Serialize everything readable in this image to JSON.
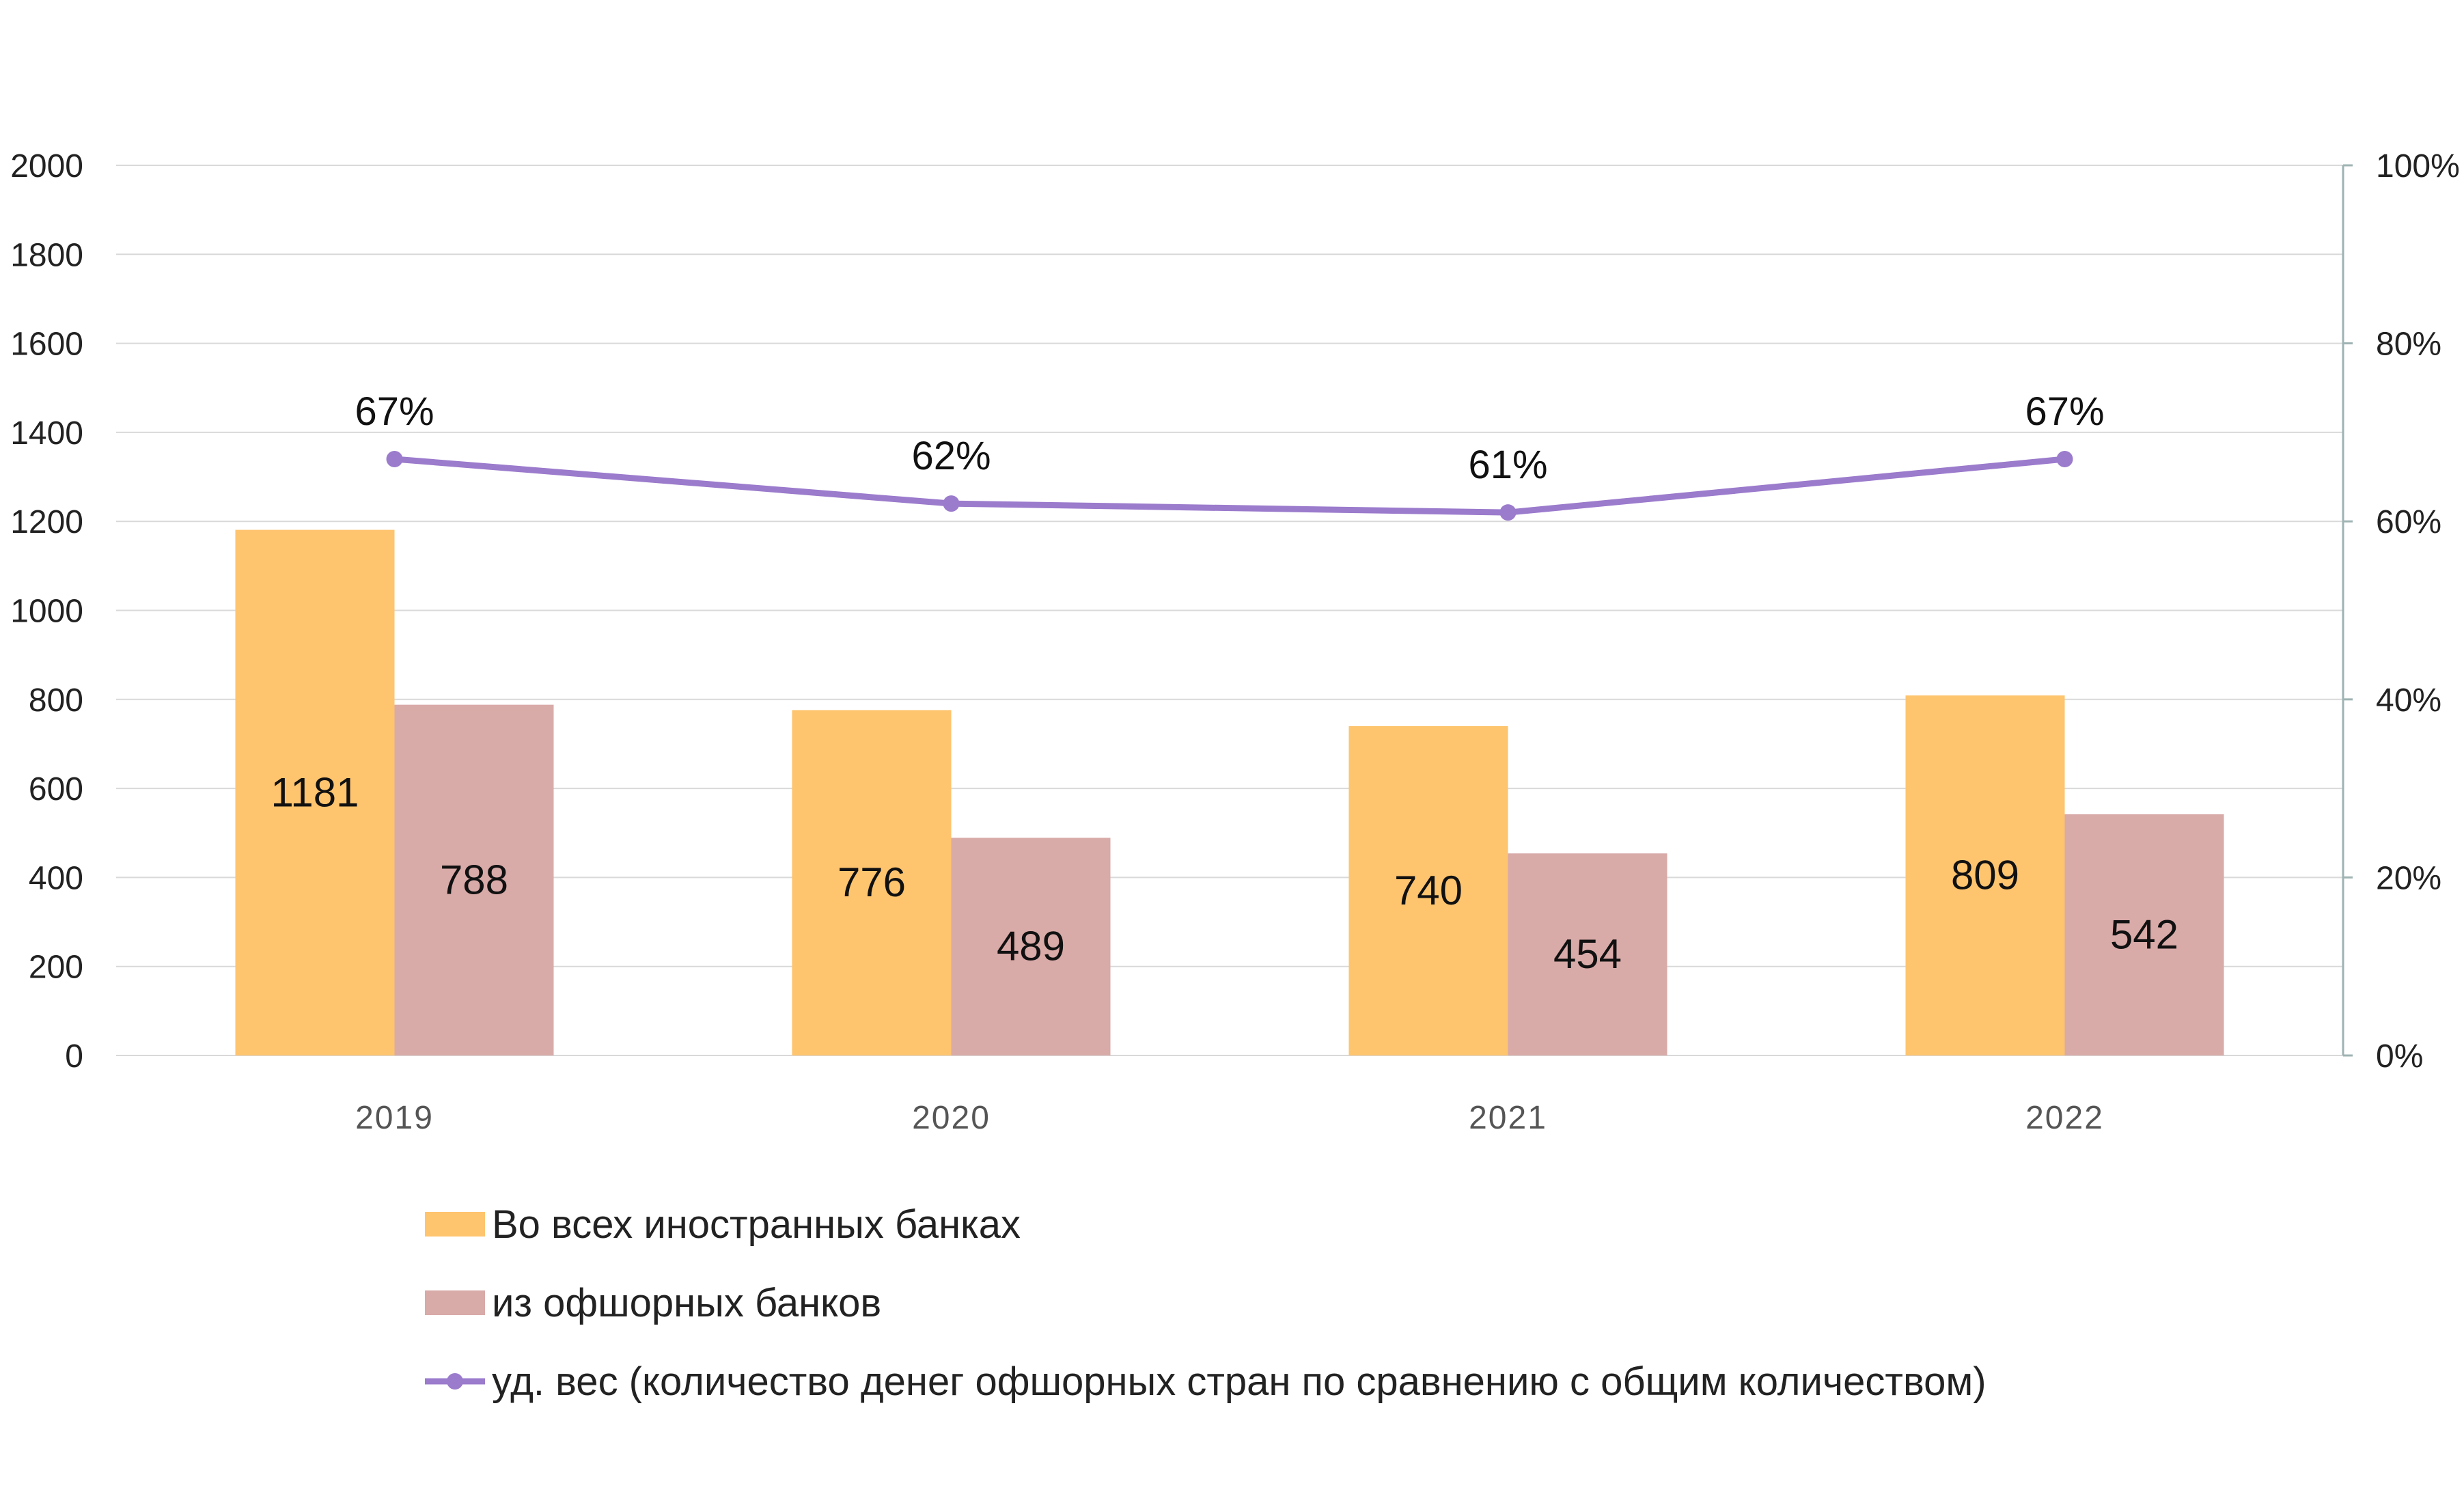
{
  "chart_data": {
    "type": "bar",
    "categories": [
      "2019",
      "2020",
      "2021",
      "2022"
    ],
    "series": [
      {
        "name": "Во всех иностранных банках",
        "kind": "bar",
        "axis": "left",
        "color": "#FEC46E",
        "values": [
          1181,
          776,
          740,
          809
        ],
        "labels": [
          "1181",
          "776",
          "740",
          "809"
        ]
      },
      {
        "name": "из офшорных банков",
        "kind": "bar",
        "axis": "left",
        "color": "#D8AAA8",
        "values": [
          788,
          489,
          454,
          542
        ],
        "labels": [
          "788",
          "489",
          "454",
          "542"
        ]
      },
      {
        "name": "уд. вес (количество денег офшорных стран по сравнению с общим количеством)",
        "kind": "line",
        "axis": "right",
        "color": "#9B7BCC",
        "values": [
          67,
          62,
          61,
          67
        ],
        "labels": [
          "67%",
          "62%",
          "61%",
          "67%"
        ]
      }
    ],
    "y_left": {
      "ylim": [
        0,
        2000
      ],
      "ticks": [
        "0",
        "200",
        "400",
        "600",
        "800",
        "1000",
        "1200",
        "1400",
        "1600",
        "1800",
        "2000"
      ]
    },
    "y_right": {
      "ylim": [
        0,
        100
      ],
      "ticks": [
        "0%",
        "20%",
        "40%",
        "60%",
        "80%",
        "100%"
      ]
    },
    "grid": true,
    "legend_position": "bottom",
    "title": "",
    "xlabel": "",
    "ylabel": ""
  },
  "colors": {
    "grid": "#D9D9D9",
    "axis_right": "#9FB3B3"
  }
}
